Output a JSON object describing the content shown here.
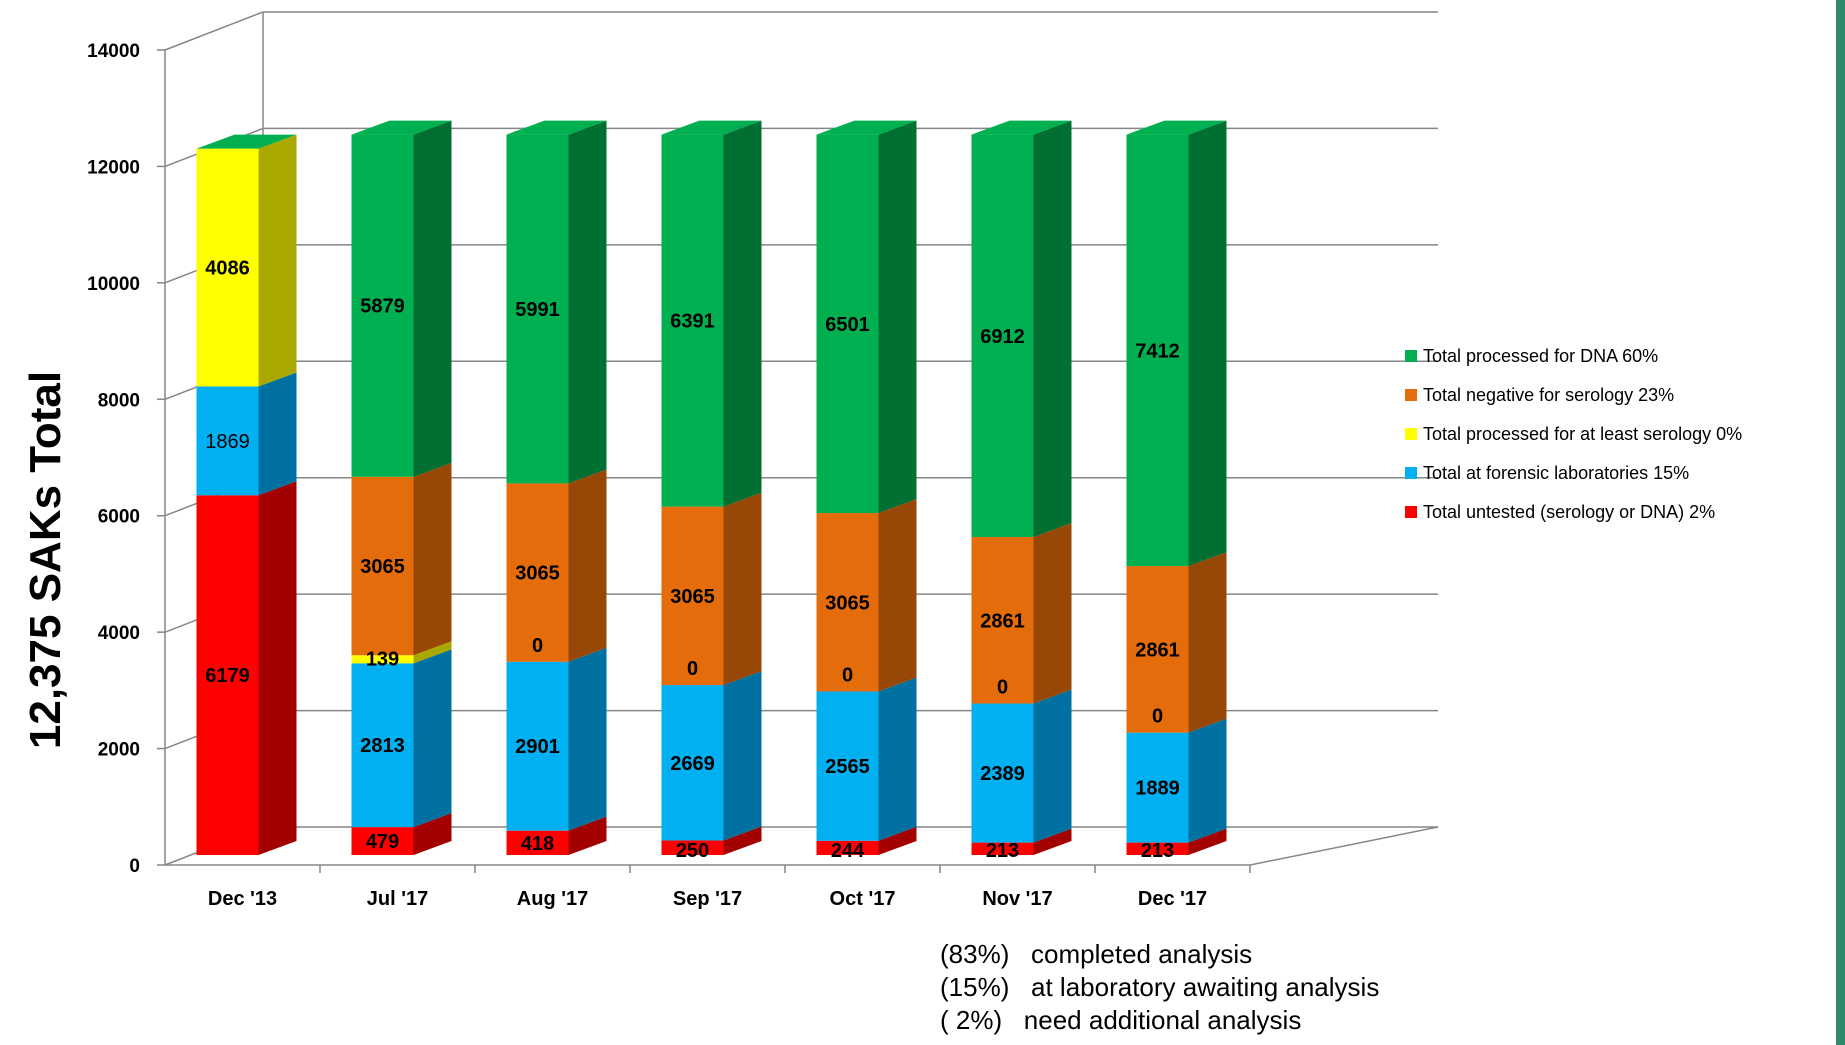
{
  "chart_data": {
    "type": "bar",
    "stacked": true,
    "three_d": true,
    "ylabel": "12,375 SAKs Total",
    "ylim": [
      0,
      14000
    ],
    "y_ticks": [
      0,
      2000,
      4000,
      6000,
      8000,
      10000,
      12000,
      14000
    ],
    "grid": true,
    "legend_position": "right",
    "categories": [
      "Dec '13",
      "Jul '17",
      "Aug '17",
      "Sep '17",
      "Oct '17",
      "Nov '17",
      "Dec '17"
    ],
    "series": [
      {
        "name": "Total untested (serology or DNA)",
        "percent_label": "2%",
        "color": "#ff0000",
        "side_color": "#a30000",
        "values": [
          6179,
          479,
          418,
          250,
          244,
          213,
          213
        ]
      },
      {
        "name": "Total at forensic laboratories",
        "percent_label": "15%",
        "color": "#00b0f0",
        "side_color": "#0070a0",
        "values": [
          1869,
          2813,
          2901,
          2669,
          2565,
          2389,
          1889
        ]
      },
      {
        "name": "Total processed for at least serology",
        "percent_label": "0%",
        "color": "#ffff00",
        "side_color": "#a8a800",
        "values": [
          4086,
          139,
          0,
          0,
          0,
          0,
          0
        ]
      },
      {
        "name": "Total negative for serology",
        "percent_label": "23%",
        "color": "#e46c0a",
        "side_color": "#974706",
        "values": [
          0,
          3065,
          3065,
          3065,
          3065,
          2861,
          2861
        ]
      },
      {
        "name": "Total processed for DNA",
        "percent_label": "60%",
        "color": "#00b050",
        "side_color": "#007032",
        "values": [
          0,
          5879,
          5991,
          6391,
          6501,
          6912,
          7412
        ]
      }
    ],
    "legend_order": [
      4,
      3,
      2,
      1,
      0
    ]
  },
  "notes": [
    {
      "percent": "(83%)",
      "text": "completed analysis"
    },
    {
      "percent": "(15%)",
      "text": "at laboratory awaiting analysis"
    },
    {
      "percent": "( 2%)",
      "text": "need additional analysis"
    }
  ],
  "colors": {
    "grid": "#868686",
    "axis": "#868686",
    "edge": "#2e8b6a"
  }
}
